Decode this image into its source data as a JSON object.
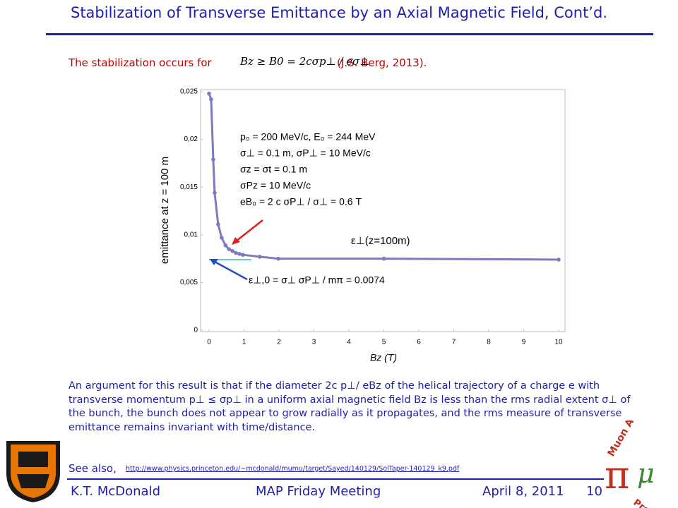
{
  "slide": {
    "title": "Stabilization of Transverse Emittance by an Axial Magnetic Field, Cont’d.",
    "intro": "The stabilization occurs for",
    "formula": "Bz ≥ B0 = 2cσp⊥ / eσ⊥",
    "citation": "(J.S. Berg, 2013).",
    "paragraph": "An argument for this result is that if the diameter 2c p⊥/ eBz of the helical trajectory of a charge e with transverse momentum p⊥ ≤ σp⊥ in a uniform axial magnetic field Bz is less than the rms radial extent σ⊥ of the bunch, the bunch does not appear to grow radially as it propagates, and the rms measure of transverse emittance remains invariant with time/distance.",
    "see_also": "See also,",
    "link": "http://www.physics.princeton.edu/~mcdonald/mumu/target/Sayed/140129/SolTaper-140129_k9.pdf",
    "footer": {
      "author": "K.T. McDonald",
      "meeting": "MAP Friday Meeting",
      "date": "April 8, 2011",
      "page": "10"
    },
    "logo": {
      "top": "Muon Accelerator",
      "bottom": "Program"
    }
  },
  "chart_data": {
    "type": "line",
    "x_label": "Bz (T)",
    "y_label": "emittance at z = 100 m",
    "annotations": [
      "p₀ = 200 MeV/c, E₀ = 244 MeV",
      "σ⊥ = 0.1 m, σP⊥ = 10 MeV/c",
      "σz = σt = 0.1 m",
      "σPz = 10 MeV/c",
      "eB₀ = 2 c σP⊥ / σ⊥ = 0.6 T"
    ],
    "curve_label": "ε⊥(z=100m)",
    "floor_label": "ε⊥,0 = σ⊥ σP⊥ / mπ = 0.0074",
    "xlim": [
      0,
      10
    ],
    "ylim": [
      0,
      0.025
    ],
    "xticks": [
      0,
      1,
      2,
      3,
      4,
      5,
      6,
      7,
      8,
      9,
      10
    ],
    "yticks": [
      0,
      {
        "value": 0.005,
        "label": "0,005"
      },
      {
        "value": 0.01,
        "label": "0,01"
      },
      {
        "value": 0.015,
        "label": "0,015"
      },
      {
        "value": 0.02,
        "label": "0,02"
      },
      {
        "value": 0.025,
        "label": "0,025"
      }
    ],
    "series": [
      {
        "color": "#7b7bbd",
        "x": [
          0,
          0.06,
          0.12,
          0.16,
          0.26,
          0.36,
          0.47,
          0.57,
          0.67,
          0.77,
          0.87,
          0.97,
          1.45,
          1.98,
          5,
          10
        ],
        "values": [
          0.0248,
          0.0242,
          0.0179,
          0.0144,
          0.0111,
          0.0097,
          0.0089,
          0.0085,
          0.0083,
          0.0081,
          0.008,
          0.0079,
          0.0077,
          0.0075,
          0.0075,
          0.0074
        ]
      }
    ]
  }
}
